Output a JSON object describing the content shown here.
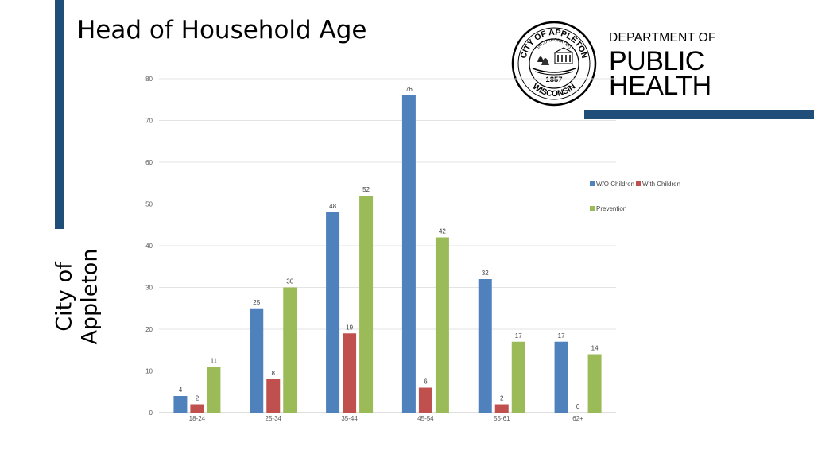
{
  "slide": {
    "title": "Head of Household Age",
    "side_label_line1": "City of",
    "side_label_line2": "Appleton"
  },
  "brand": {
    "dept_line1": "DEPARTMENT OF",
    "dept_line2": "PUBLIC",
    "dept_line3": "HEALTH",
    "seal_top_text": "CITY OF APPLETON",
    "seal_inner_text": "INCORPORATED",
    "seal_year": "1857",
    "seal_bottom_text": "WISCONSIN",
    "primary_color": "#1f4e79"
  },
  "chart_data": {
    "type": "bar",
    "categories": [
      "18-24",
      "25-34",
      "35-44",
      "45-54",
      "55-61",
      "62+"
    ],
    "series": [
      {
        "name": "W/O Children",
        "color": "#4f81bd",
        "values": [
          4,
          25,
          48,
          76,
          32,
          17
        ]
      },
      {
        "name": "With Children",
        "color": "#c0504d",
        "values": [
          2,
          8,
          19,
          6,
          2,
          0
        ]
      },
      {
        "name": "Prevention",
        "color": "#9bbb59",
        "values": [
          11,
          30,
          52,
          42,
          17,
          14
        ]
      }
    ],
    "ylim": [
      0,
      80
    ],
    "yticks": [
      0,
      10,
      20,
      30,
      40,
      50,
      60,
      70,
      80
    ],
    "grid": true,
    "legend_position": "right",
    "data_labels": true
  }
}
